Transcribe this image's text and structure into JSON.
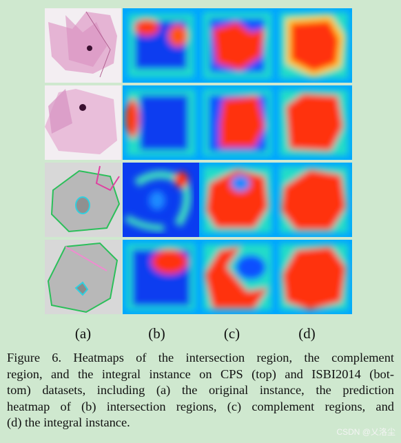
{
  "panel_labels": [
    "(a)",
    "(b)",
    "(c)",
    "(d)"
  ],
  "caption_lines": [
    "Figure 6.  Heatmaps of the intersection region, the complement",
    "region, and the integral instance on CPS (top) and ISBI2014 (bot-",
    "tom) datasets, including (a) the original instance, the prediction",
    "heatmap of (b) intersection regions, (c) complement regions, and",
    "(d) the integral instance."
  ],
  "watermark": "CSDN @乂洛尘"
}
